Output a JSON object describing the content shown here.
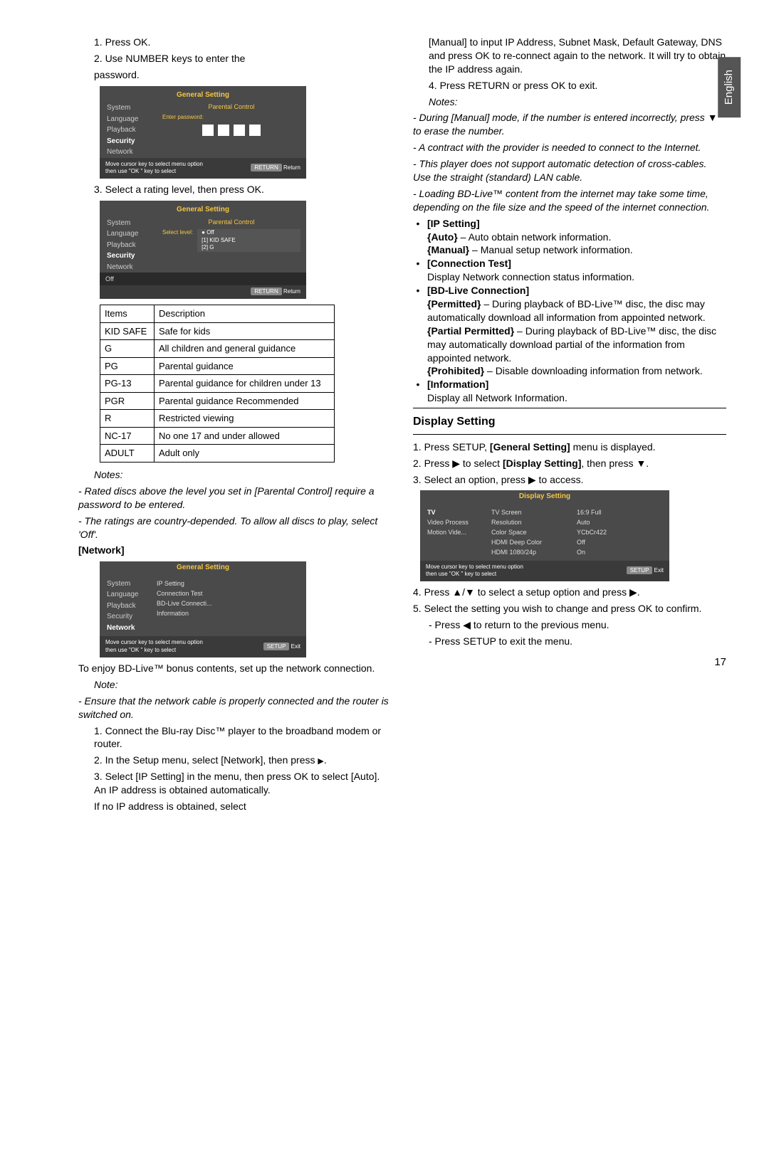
{
  "side_tab": "English",
  "page_number": "17",
  "left": {
    "step1": "1. Press OK.",
    "step2": "2. Use NUMBER keys to enter the",
    "step2b": "password.",
    "ui1": {
      "title": "General Setting",
      "sidebar": [
        "System",
        "Language",
        "Playback",
        "Security",
        "Network"
      ],
      "active_idx": 3,
      "panel_label": "Parental Control",
      "enter_pw": "Enter password:",
      "footer_left": "Move cursor key to select menu option\nthen use \"OK \" key to select",
      "footer_btn": "RETURN",
      "footer_txt": "Return"
    },
    "step3": "3. Select a rating level, then press OK.",
    "ui2": {
      "title": "General Setting",
      "sidebar": [
        "System",
        "Language",
        "Playback",
        "Security",
        "Network"
      ],
      "active_idx": 3,
      "panel_label": "Parental Control",
      "select_level": "Select level:",
      "levels": [
        "Off",
        "[1] KID SAFE",
        "[2] G"
      ],
      "bottom_off": "Off",
      "footer_btn": "RETURN",
      "footer_txt": "Return"
    },
    "ratings": {
      "headers": [
        "Items",
        "Description"
      ],
      "rows": [
        [
          "KID SAFE",
          "Safe for kids"
        ],
        [
          "G",
          "All children and general guidance"
        ],
        [
          "PG",
          "Parental guidance"
        ],
        [
          "PG-13",
          "Parental guidance for children under 13"
        ],
        [
          "PGR",
          "Parental guidance Recommended"
        ],
        [
          "R",
          "Restricted viewing"
        ],
        [
          "NC-17",
          "No one 17 and under allowed"
        ],
        [
          "ADULT",
          "Adult only"
        ]
      ]
    },
    "notes_label": "Notes:",
    "note1": "- Rated discs above the level you set in [Parental Control] require a password to be entered.",
    "note2": "- The ratings are country-depended. To allow all discs to play, select 'Off'.",
    "network_head": "[Network]",
    "ui3": {
      "title": "General Setting",
      "sidebar": [
        "System",
        "Language",
        "Playback",
        "Security",
        "Network"
      ],
      "active_idx": 4,
      "options": [
        "IP Setting",
        "Connection Test",
        "BD-Live Connecti...",
        "Information"
      ],
      "footer_left": "Move cursor key to select menu option\nthen use \"OK \" key to select",
      "footer_btn": "SETUP",
      "footer_txt": "Exit"
    },
    "net_intro": "To enjoy BD-Live™ bonus contents, set up the network connection.",
    "note_label2": "Note:",
    "net_note": "- Ensure that the network cable is properly connected and the router is switched on.",
    "net_s1": "1. Connect the Blu-ray Disc™ player to the broadband modem or router.",
    "net_s2a": "2. In the Setup menu, select [Network], then press ",
    "net_s2b": ".",
    "net_s3": "3. Select [IP Setting] in the menu, then press OK to select [Auto]. An IP address is obtained automatically.",
    "net_s4": "If no IP address is obtained, select"
  },
  "right": {
    "p1": "[Manual] to input IP Address, Subnet Mask, Default Gateway, DNS and press OK to re-connect again to the network. It will try to obtain the IP address again.",
    "p2": "4. Press RETURN or press OK to exit.",
    "notes_label": "Notes:",
    "n1": "- During [Manual] mode, if the number is entered incorrectly, press ▼ to erase the number.",
    "n2": "- A contract with the provider is needed to connect to the Internet.",
    "n3": "- This player does not support automatic detection of cross-cables. Use the straight (standard) LAN cable.",
    "n4": "- Loading BD-Live™ content from the internet may take some time, depending on the file size and the speed of the internet connection.",
    "ip_head": "[IP Setting]",
    "ip_auto_k": "{Auto}",
    "ip_auto_v": " – Auto obtain network information.",
    "ip_man_k": "{Manual}",
    "ip_man_v": " – Manual setup network information.",
    "ct_head": "[Connection Test]",
    "ct_body": "Display Network connection status information.",
    "bd_head": "[BD-Live Connection]",
    "bd_perm_k": "{Permitted}",
    "bd_perm_v": " – During playback of BD-Live™ disc, the disc may automatically download all information from appointed network.",
    "bd_pp_k": "{Partial Permitted}",
    "bd_pp_v": " – During playback of BD-Live™ disc, the disc may automatically download partial of the information from appointed network.",
    "bd_pro_k": "{Prohibited}",
    "bd_pro_v": " – Disable downloading information from network.",
    "info_head": "[Information]",
    "info_body": "Display all Network Information.",
    "disp_head": "Display Setting",
    "d1a": "1. Press SETUP, ",
    "d1b": "[General Setting]",
    "d1c": " menu is displayed.",
    "d2a": "2. Press ▶ to select ",
    "d2b": "[Display Setting]",
    "d2c": ", then press ▼.",
    "d3": "3. Select an option, press ▶ to access.",
    "ui4": {
      "title": "Display Setting",
      "col1": [
        "TV",
        "Video Process",
        "Motion Vide..."
      ],
      "col2": [
        "TV Screen",
        "Resolution",
        "Color Space",
        "HDMI Deep Color",
        "HDMI 1080/24p"
      ],
      "col3": [
        "16:9 Full",
        "Auto",
        "YCbCr422",
        "Off",
        "On"
      ],
      "footer_left": "Move cursor key to select menu option\nthen use \"OK \" key to select",
      "footer_btn": "SETUP",
      "footer_txt": "Exit"
    },
    "d4": "4. Press ▲/▼ to select a setup option and press ▶.",
    "d5": "5. Select the setting you wish to change and press OK to confirm.",
    "d5a": "- Press ◀ to return to the previous menu.",
    "d5b": "- Press SETUP to exit the menu."
  }
}
